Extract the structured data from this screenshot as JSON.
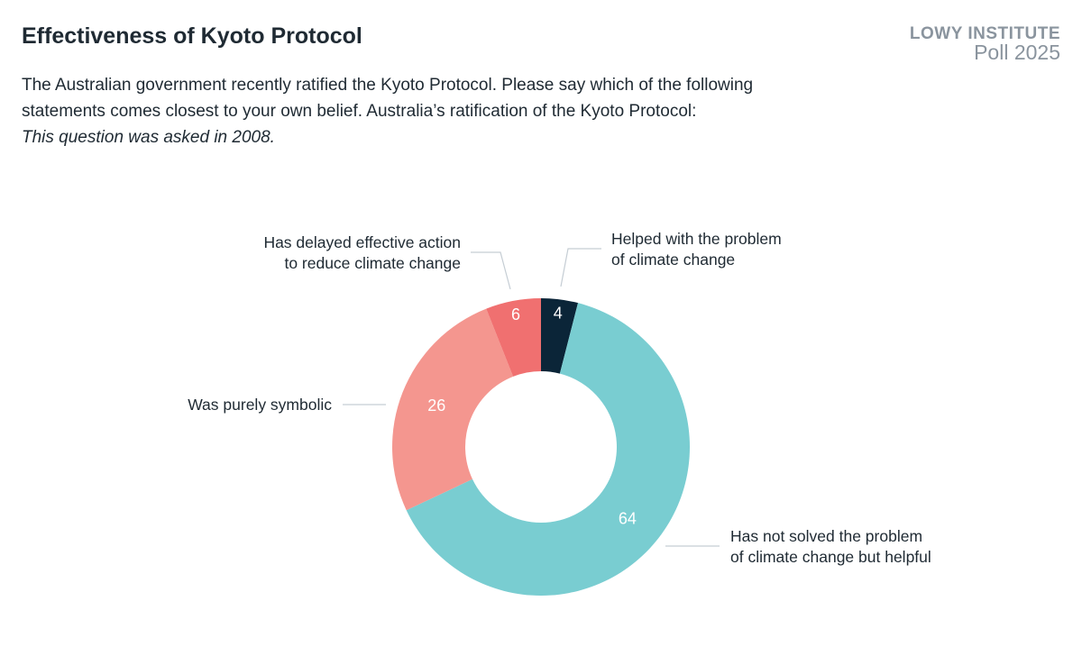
{
  "header": {
    "title": "Effectiveness of Kyoto Protocol",
    "subtitle": "The Australian government recently ratified the Kyoto Protocol. Please say which of the following statements comes closest to your own belief. Australia’s ratification of the Kyoto Protocol:",
    "note": "This question was asked in 2008."
  },
  "logo": {
    "line1": "LOWY INSTITUTE",
    "line2": "Poll 2025"
  },
  "chart_data": {
    "type": "pie",
    "donut": true,
    "categories": [
      "Helped with the problem of climate change",
      "Has not solved the problem of climate change but helpful",
      "Was purely symbolic",
      "Has delayed effective action to reduce climate change"
    ],
    "values": [
      4,
      64,
      26,
      6
    ],
    "label_lines": [
      [
        "Helped with the problem",
        "of climate change"
      ],
      [
        "Has not solved the problem",
        "of climate change but helpful"
      ],
      [
        "Was purely symbolic"
      ],
      [
        "Has delayed effective action",
        "to reduce climate change"
      ]
    ],
    "colors": [
      "#0b2538",
      "#79cdd1",
      "#f4968f",
      "#f07070"
    ]
  }
}
